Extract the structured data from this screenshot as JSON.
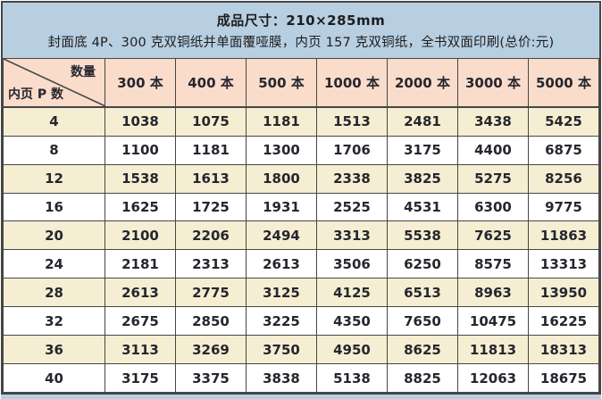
{
  "banner": {
    "line1": "成品尺寸：210×285mm",
    "line2": "封面底 4P、300 克双铜纸并单面覆哑膜，内页 157 克双铜纸，全书双面印刷(总价:元)"
  },
  "table": {
    "corner": {
      "top_label": "数量",
      "bottom_label": "内页 P 数"
    },
    "columns": [
      "300 本",
      "400 本",
      "500 本",
      "1000 本",
      "2000 本",
      "3000 本",
      "5000 本"
    ],
    "rows": [
      {
        "pages": "4",
        "values": [
          "1038",
          "1075",
          "1181",
          "1513",
          "2481",
          "3438",
          "5425"
        ]
      },
      {
        "pages": "8",
        "values": [
          "1100",
          "1181",
          "1300",
          "1706",
          "3175",
          "4400",
          "6875"
        ]
      },
      {
        "pages": "12",
        "values": [
          "1538",
          "1613",
          "1800",
          "2338",
          "3825",
          "5275",
          "8256"
        ]
      },
      {
        "pages": "16",
        "values": [
          "1625",
          "1725",
          "1931",
          "2525",
          "4531",
          "6300",
          "9775"
        ]
      },
      {
        "pages": "20",
        "values": [
          "2100",
          "2206",
          "2494",
          "3313",
          "5538",
          "7625",
          "11863"
        ]
      },
      {
        "pages": "24",
        "values": [
          "2181",
          "2313",
          "2613",
          "3506",
          "6250",
          "8575",
          "13313"
        ]
      },
      {
        "pages": "28",
        "values": [
          "2613",
          "2775",
          "3125",
          "4125",
          "6513",
          "8963",
          "13950"
        ]
      },
      {
        "pages": "32",
        "values": [
          "2675",
          "2850",
          "3225",
          "4350",
          "7650",
          "10475",
          "16225"
        ]
      },
      {
        "pages": "36",
        "values": [
          "3113",
          "3269",
          "3750",
          "4950",
          "8625",
          "11813",
          "18313"
        ]
      },
      {
        "pages": "40",
        "values": [
          "3175",
          "3375",
          "3838",
          "5138",
          "8825",
          "12063",
          "18675"
        ]
      }
    ]
  },
  "colors": {
    "banner_bg": "#b8cfe2",
    "header_bg": "#f9dcca",
    "row_alt_bg": "#f6eed2",
    "row_bg": "#ffffff",
    "border": "#464646",
    "text": "#26262e"
  }
}
